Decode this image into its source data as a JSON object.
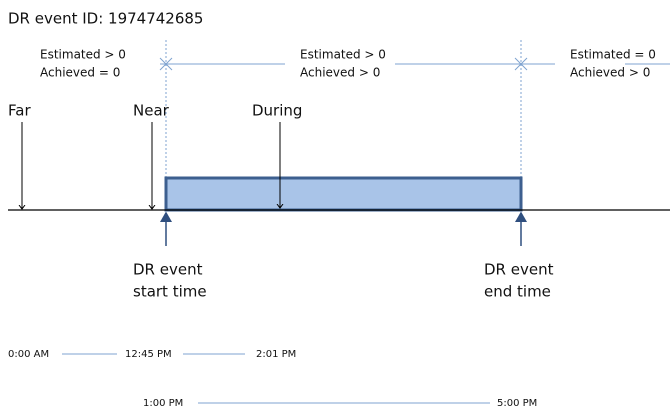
{
  "title": "DR event ID: 1974742685",
  "phases": [
    {
      "estimated": "Estimated > 0",
      "achieved": "Achieved = 0"
    },
    {
      "estimated": "Estimated > 0",
      "achieved": "Achieved > 0"
    },
    {
      "estimated": "Estimated = 0",
      "achieved": "Achieved > 0"
    }
  ],
  "markers": [
    "Far",
    "Near",
    "During"
  ],
  "events": [
    {
      "line1": "DR event",
      "line2": "start time"
    },
    {
      "line1": "DR event",
      "line2": "end time"
    }
  ],
  "times": [
    [
      "0:00 AM",
      "12:45 PM",
      "2:01 PM"
    ],
    [
      "1:00 PM",
      "5:00 PM"
    ]
  ]
}
